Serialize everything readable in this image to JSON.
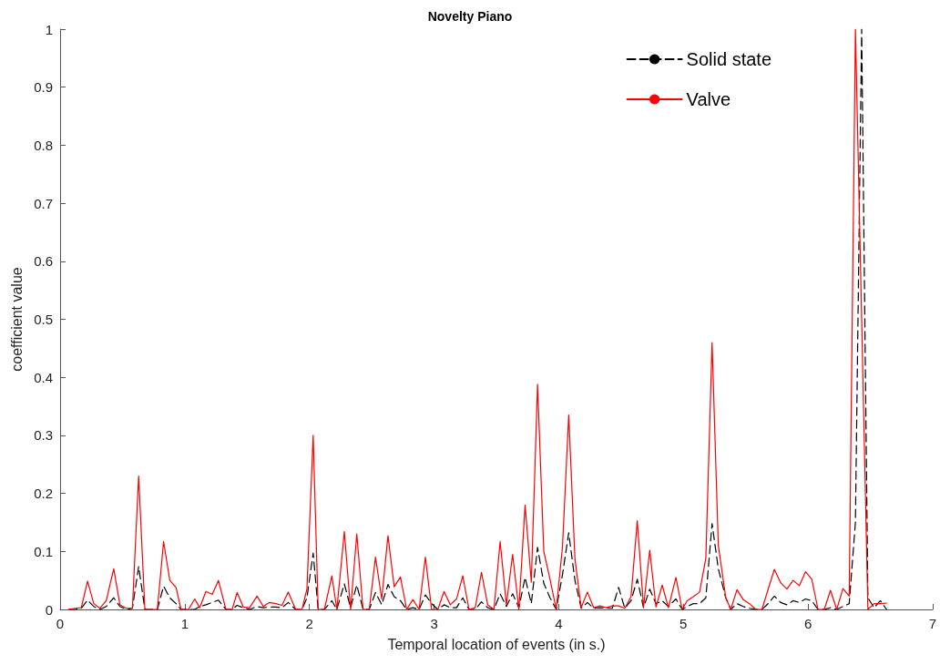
{
  "chart_data": {
    "type": "line",
    "title": "Novelty Piano",
    "xlabel": "Temporal location of events (in s.)",
    "ylabel": "coefficient value",
    "x": [
      0.07,
      0.12,
      0.17,
      0.22,
      0.27,
      0.32,
      0.37,
      0.43,
      0.48,
      0.53,
      0.58,
      0.63,
      0.68,
      0.73,
      0.78,
      0.83,
      0.88,
      0.93,
      0.97,
      1.03,
      1.08,
      1.12,
      1.17,
      1.22,
      1.27,
      1.33,
      1.38,
      1.42,
      1.47,
      1.52,
      1.58,
      1.63,
      1.68,
      1.73,
      1.78,
      1.83,
      1.89,
      1.94,
      1.98,
      2.03,
      2.07,
      2.12,
      2.18,
      2.22,
      2.28,
      2.33,
      2.38,
      2.43,
      2.48,
      2.53,
      2.58,
      2.63,
      2.68,
      2.73,
      2.78,
      2.83,
      2.88,
      2.93,
      2.98,
      3.03,
      3.08,
      3.13,
      3.18,
      3.23,
      3.28,
      3.33,
      3.38,
      3.43,
      3.48,
      3.53,
      3.58,
      3.63,
      3.68,
      3.73,
      3.78,
      3.83,
      3.88,
      3.93,
      3.98,
      4.03,
      4.08,
      4.13,
      4.18,
      4.23,
      4.28,
      4.33,
      4.38,
      4.43,
      4.48,
      4.53,
      4.58,
      4.63,
      4.68,
      4.73,
      4.78,
      4.83,
      4.88,
      4.94,
      4.99,
      5.03,
      5.08,
      5.13,
      5.18,
      5.23,
      5.28,
      5.34,
      5.38,
      5.43,
      5.48,
      5.53,
      5.58,
      5.63,
      5.68,
      5.73,
      5.78,
      5.83,
      5.88,
      5.93,
      5.98,
      6.03,
      6.08,
      6.13,
      6.18,
      6.23,
      6.28,
      6.33,
      6.38,
      6.43,
      6.48,
      6.53,
      6.58,
      6.63
    ],
    "series": [
      {
        "name": "Solid state",
        "color": "#000000",
        "line_style": "dashed",
        "values": [
          0,
          0,
          0.002,
          0.016,
          0.005,
          0,
          0.005,
          0.02,
          0.005,
          0,
          0.002,
          0.074,
          0,
          0,
          0,
          0.04,
          0.02,
          0.01,
          0,
          0,
          0,
          0.005,
          0.008,
          0.012,
          0.016,
          0,
          0,
          0.007,
          0.003,
          0,
          0.005,
          0.003,
          0.004,
          0.004,
          0.003,
          0.012,
          0,
          0,
          0.02,
          0.097,
          0,
          0,
          0.015,
          0,
          0.044,
          0.003,
          0.042,
          0,
          0,
          0.029,
          0.008,
          0.043,
          0.022,
          0.015,
          0,
          0.003,
          0,
          0.025,
          0.01,
          0,
          0.008,
          0.003,
          0.003,
          0.02,
          0,
          0,
          0.013,
          0.003,
          0,
          0.027,
          0.005,
          0.027,
          0.003,
          0.055,
          0.01,
          0.107,
          0.045,
          0.02,
          0,
          0.06,
          0.132,
          0.05,
          0.002,
          0.012,
          0.002,
          0.003,
          0.002,
          0.002,
          0.038,
          0.002,
          0.015,
          0.052,
          0.003,
          0.035,
          0.01,
          0.015,
          0.005,
          0.018,
          0,
          0.005,
          0.01,
          0.01,
          0.02,
          0.148,
          0.07,
          0.02,
          0,
          0.01,
          0.005,
          0.002,
          0,
          0,
          0.01,
          0.023,
          0.012,
          0.008,
          0.015,
          0.012,
          0.018,
          0.015,
          0,
          0,
          0.003,
          0,
          0.005,
          0.01,
          0.15,
          1,
          0.02,
          0.003,
          0.015,
          0
        ]
      },
      {
        "name": "Valve",
        "color": "#ff0000",
        "line_style": "solid",
        "values": [
          0,
          0.002,
          0.003,
          0.049,
          0.01,
          0.002,
          0.015,
          0.07,
          0.008,
          0.002,
          0.002,
          0.23,
          0,
          0,
          0,
          0.117,
          0.05,
          0.038,
          0,
          0,
          0.018,
          0.003,
          0.031,
          0.026,
          0.05,
          0,
          0,
          0.029,
          0.004,
          0.003,
          0.023,
          0.005,
          0.012,
          0.01,
          0.007,
          0.03,
          0,
          0,
          0.035,
          0.3,
          0,
          0,
          0.058,
          0,
          0.134,
          0,
          0.13,
          0,
          0,
          0.09,
          0.018,
          0.127,
          0.039,
          0.056,
          0,
          0.017,
          0,
          0.09,
          0,
          0,
          0.031,
          0.008,
          0.018,
          0.058,
          0,
          0.003,
          0.064,
          0.008,
          0,
          0.117,
          0.008,
          0.095,
          0,
          0.18,
          0.047,
          0.388,
          0.1,
          0.052,
          0,
          0.108,
          0.335,
          0.087,
          0.003,
          0.03,
          0.003,
          0.006,
          0.003,
          0.006,
          0.006,
          0.002,
          0.022,
          0.153,
          0.004,
          0.102,
          0.004,
          0.042,
          0.003,
          0.055,
          0,
          0.015,
          0.022,
          0.03,
          0.088,
          0.46,
          0.111,
          0.02,
          0,
          0.034,
          0.017,
          0.01,
          0,
          0,
          0.035,
          0.069,
          0.046,
          0.035,
          0.05,
          0.041,
          0.065,
          0.052,
          0,
          0,
          0.033,
          0,
          0.036,
          0.023,
          1,
          0.5,
          0,
          0.01,
          0.01,
          0.011
        ]
      }
    ],
    "xlim": [
      0,
      7
    ],
    "xticks": [
      0,
      1,
      2,
      3,
      4,
      5,
      6,
      7
    ],
    "ylim": [
      0,
      1
    ],
    "yticks": [
      0,
      0.1,
      0.2,
      0.3,
      0.4,
      0.5,
      0.6,
      0.7,
      0.8,
      0.9,
      1
    ],
    "grid": false,
    "legend": "top right",
    "marker": "none"
  }
}
